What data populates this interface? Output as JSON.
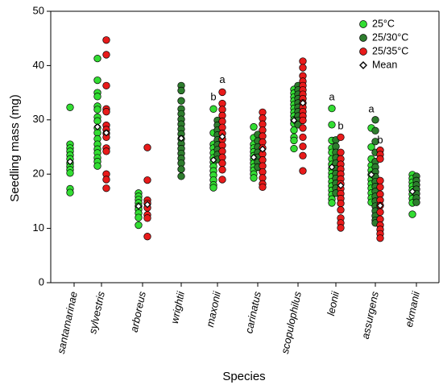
{
  "chart_data": {
    "type": "scatter",
    "xlabel": "Species",
    "ylabel": "Seedling mass (mg)",
    "ylim": [
      0,
      50
    ],
    "yticks": [
      0,
      10,
      20,
      30,
      40,
      50
    ],
    "grid": false,
    "legend_position": "top-right",
    "categories": [
      "santamarinae",
      "sylvestris",
      "arboreus",
      "wrightii",
      "maxonii",
      "carinatus",
      "scopulophilus",
      "leonii",
      "assurgens",
      "ekmanii"
    ],
    "series": [
      {
        "name": "25°C",
        "color": "#33dd33",
        "marker": "circle",
        "points": {
          "santamarinae": [
            32.3,
            25.5,
            24.8,
            24.2,
            23.5,
            22.8,
            22.0,
            21.4,
            20.8,
            20.2,
            17.3,
            16.6
          ],
          "sylvestris": [
            41.3,
            37.3,
            35.0,
            34.3,
            32.5,
            31.9,
            30.5,
            29.8,
            28.5,
            27.6,
            26.5,
            25.5,
            24.6,
            23.9,
            23.0,
            22.3,
            21.5
          ],
          "arboreus": [
            16.5,
            15.9,
            15.3,
            14.7,
            14.1,
            13.5,
            12.8,
            12.0,
            10.6
          ],
          "maxonii": [
            32.0,
            27.6,
            25.5,
            24.8,
            23.9,
            23.0,
            22.2,
            21.4,
            20.6,
            19.8,
            18.9,
            18.0,
            17.5
          ],
          "carinatus": [
            28.7,
            26.7,
            25.5,
            24.8,
            24.1,
            23.4,
            22.7,
            22.0,
            21.3,
            20.7,
            20.0,
            19.3
          ],
          "scopulophilus": [
            35.6,
            34.9,
            34.2,
            33.5,
            32.8,
            32.1,
            31.4,
            30.7,
            30.0,
            29.3,
            28.1,
            26.8,
            26.2,
            24.7
          ],
          "leonii": [
            32.1,
            29.1,
            26.2,
            24.8,
            24.0,
            22.8,
            21.8,
            21.0,
            20.2,
            19.5,
            18.6,
            17.8,
            17.0,
            16.2,
            15.4,
            14.7
          ],
          "assurgens": [
            28.5,
            25.0,
            22.8,
            21.6,
            20.7,
            19.9,
            19.0,
            18.2,
            17.4,
            16.5,
            15.6,
            14.8
          ],
          "ekmanii": [
            19.9,
            19.2,
            18.5,
            17.8,
            17.1,
            16.3,
            15.5,
            14.7,
            12.6
          ]
        }
      },
      {
        "name": "25/30°C",
        "color": "#2e7d2e",
        "marker": "circle",
        "points": {
          "wrightii": [
            36.3,
            35.4,
            33.5,
            32.0,
            31.1,
            30.1,
            29.2,
            28.3,
            27.4,
            26.5,
            25.6,
            24.7,
            23.8,
            22.9,
            22.0,
            20.9,
            19.6
          ],
          "maxonii": [
            29.9,
            29.0,
            28.1,
            27.2,
            26.3,
            25.4,
            24.5,
            23.6,
            22.7
          ],
          "carinatus": [
            27.3,
            26.1,
            25.0,
            24.0,
            23.1,
            22.2,
            21.3
          ],
          "scopulophilus": [
            36.3,
            35.5,
            34.7,
            33.9,
            33.1,
            32.3,
            31.5,
            30.7,
            29.9,
            29.1
          ],
          "leonii": [
            26.3,
            25.1,
            24.0,
            23.0,
            22.0,
            21.0,
            20.1,
            19.2,
            18.3,
            17.4,
            16.5
          ],
          "assurgens": [
            30.0,
            28.0,
            26.0,
            24.0,
            22.3,
            21.3,
            20.4,
            19.5,
            18.6,
            17.7,
            16.8,
            15.9,
            15.0,
            14.1,
            13.2,
            12.3,
            11.5,
            11.0
          ],
          "ekmanii": [
            19.6,
            18.8,
            18.0,
            17.2,
            16.4,
            15.6,
            14.8
          ]
        }
      },
      {
        "name": "25/35°C",
        "color": "#e81b1b",
        "marker": "circle",
        "points": {
          "sylvestris": [
            44.7,
            42.0,
            36.3,
            32.0,
            31.5,
            29.0,
            28.2,
            27.5,
            26.8,
            24.8,
            24.2,
            20.0,
            19.0,
            17.4
          ],
          "arboreus": [
            24.9,
            18.9,
            15.2,
            14.6,
            13.8,
            12.5,
            11.9,
            8.5
          ],
          "maxonii": [
            35.1,
            33.0,
            31.9,
            30.8,
            29.7,
            28.6,
            27.5,
            26.4,
            25.3,
            24.2,
            23.1,
            22.0,
            20.8,
            19.0
          ],
          "carinatus": [
            31.4,
            30.3,
            29.2,
            28.1,
            27.0,
            25.9,
            24.8,
            23.7,
            22.6,
            21.5,
            20.4,
            19.3,
            18.2,
            17.6
          ],
          "scopulophilus": [
            40.8,
            39.6,
            38.1,
            37.1,
            36.3,
            35.5,
            34.7,
            33.9,
            33.1,
            32.3,
            31.5,
            30.7,
            29.9,
            28.5,
            26.8,
            25.1,
            23.4,
            20.6
          ],
          "leonii": [
            26.8,
            24.0,
            22.8,
            21.8,
            20.9,
            20.0,
            19.1,
            18.2,
            17.3,
            16.4,
            15.5,
            14.6,
            13.4,
            11.9,
            11.0,
            10.1
          ],
          "assurgens": [
            24.4,
            23.6,
            22.8,
            18.8,
            17.6,
            16.3,
            15.2,
            14.2,
            13.0,
            11.7,
            10.6,
            9.8,
            9.0,
            8.2
          ]
        }
      }
    ],
    "mean_series": {
      "name": "Mean",
      "marker": "open-diamond",
      "points": [
        {
          "category": "santamarinae",
          "group": "25°C",
          "value": 22.3
        },
        {
          "category": "sylvestris",
          "group": "25°C",
          "value": 28.7
        },
        {
          "category": "sylvestris",
          "group": "25/35°C",
          "value": 27.6
        },
        {
          "category": "arboreus",
          "group": "25°C",
          "value": 14.1
        },
        {
          "category": "arboreus",
          "group": "25/35°C",
          "value": 14.4
        },
        {
          "category": "wrightii",
          "group": "25/30°C",
          "value": 26.6
        },
        {
          "category": "maxonii",
          "group": "25°C",
          "value": 22.6
        },
        {
          "category": "maxonii",
          "group": "25/35°C",
          "value": 26.9
        },
        {
          "category": "carinatus",
          "group": "25°C",
          "value": 23.1
        },
        {
          "category": "carinatus",
          "group": "25/35°C",
          "value": 24.6
        },
        {
          "category": "scopulophilus",
          "group": "25°C",
          "value": 29.9
        },
        {
          "category": "scopulophilus",
          "group": "25/35°C",
          "value": 33.1
        },
        {
          "category": "leonii",
          "group": "25°C",
          "value": 21.3
        },
        {
          "category": "leonii",
          "group": "25/35°C",
          "value": 17.9
        },
        {
          "category": "assurgens",
          "group": "25°C",
          "value": 19.9
        },
        {
          "category": "assurgens",
          "group": "25/35°C",
          "value": 14.2
        },
        {
          "category": "ekmanii",
          "group": "25°C",
          "value": 16.8
        }
      ]
    },
    "annotations": [
      {
        "text": "a",
        "category": "maxonii",
        "group": "25/35°C",
        "y": 36.8
      },
      {
        "text": "b",
        "category": "maxonii",
        "group": "25°C",
        "y": 33.6
      },
      {
        "text": "a",
        "category": "leonii",
        "group": "25°C",
        "y": 33.6
      },
      {
        "text": "b",
        "category": "leonii",
        "group": "25/35°C",
        "y": 28.3
      },
      {
        "text": "a",
        "category": "assurgens",
        "group": "25°C",
        "y": 31.4
      },
      {
        "text": "b",
        "category": "assurgens",
        "group": "25/35°C",
        "y": 25.7
      }
    ],
    "legend": [
      {
        "label": "25°C",
        "color": "#33dd33",
        "marker": "circle"
      },
      {
        "label": "25/30°C",
        "color": "#2e7d2e",
        "marker": "circle"
      },
      {
        "label": "25/35°C",
        "color": "#e81b1b",
        "marker": "circle"
      },
      {
        "label": "Mean",
        "color": "#ffffff",
        "marker": "open-diamond"
      }
    ]
  }
}
